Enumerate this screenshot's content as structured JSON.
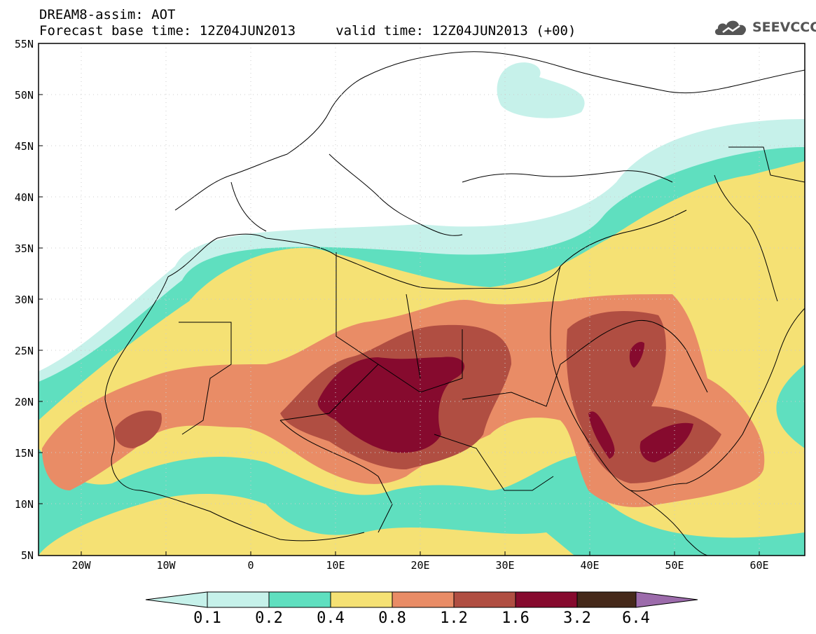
{
  "header": {
    "title_line1": "DREAM8-assim: AOT",
    "title_line2": "Forecast base time: 12Z04JUN2013     valid time: 12Z04JUN2013 (+00)"
  },
  "logo": {
    "text": "SEEVCCC",
    "icon": "cloud-icon"
  },
  "map": {
    "lat_labels": [
      "55N",
      "50N",
      "45N",
      "40N",
      "35N",
      "30N",
      "25N",
      "20N",
      "15N",
      "10N",
      "5N"
    ],
    "lon_labels": [
      "20W",
      "10W",
      "0",
      "10E",
      "20E",
      "30E",
      "40E",
      "50E",
      "60E"
    ],
    "lon_range": [
      -25,
      65
    ],
    "lat_range": [
      5,
      55
    ],
    "colors": {
      "c0": "#c6f1ea",
      "c1": "#5fdfbf",
      "c2": "#f5e174",
      "c3": "#e98c66",
      "c4": "#b04e42",
      "c5": "#860a2e",
      "c6": "#45291a",
      "c7": "#9c6bab"
    }
  },
  "colorbar": {
    "labels": [
      "0.1",
      "0.2",
      "0.4",
      "0.8",
      "1.2",
      "1.6",
      "3.2",
      "6.4"
    ]
  }
}
